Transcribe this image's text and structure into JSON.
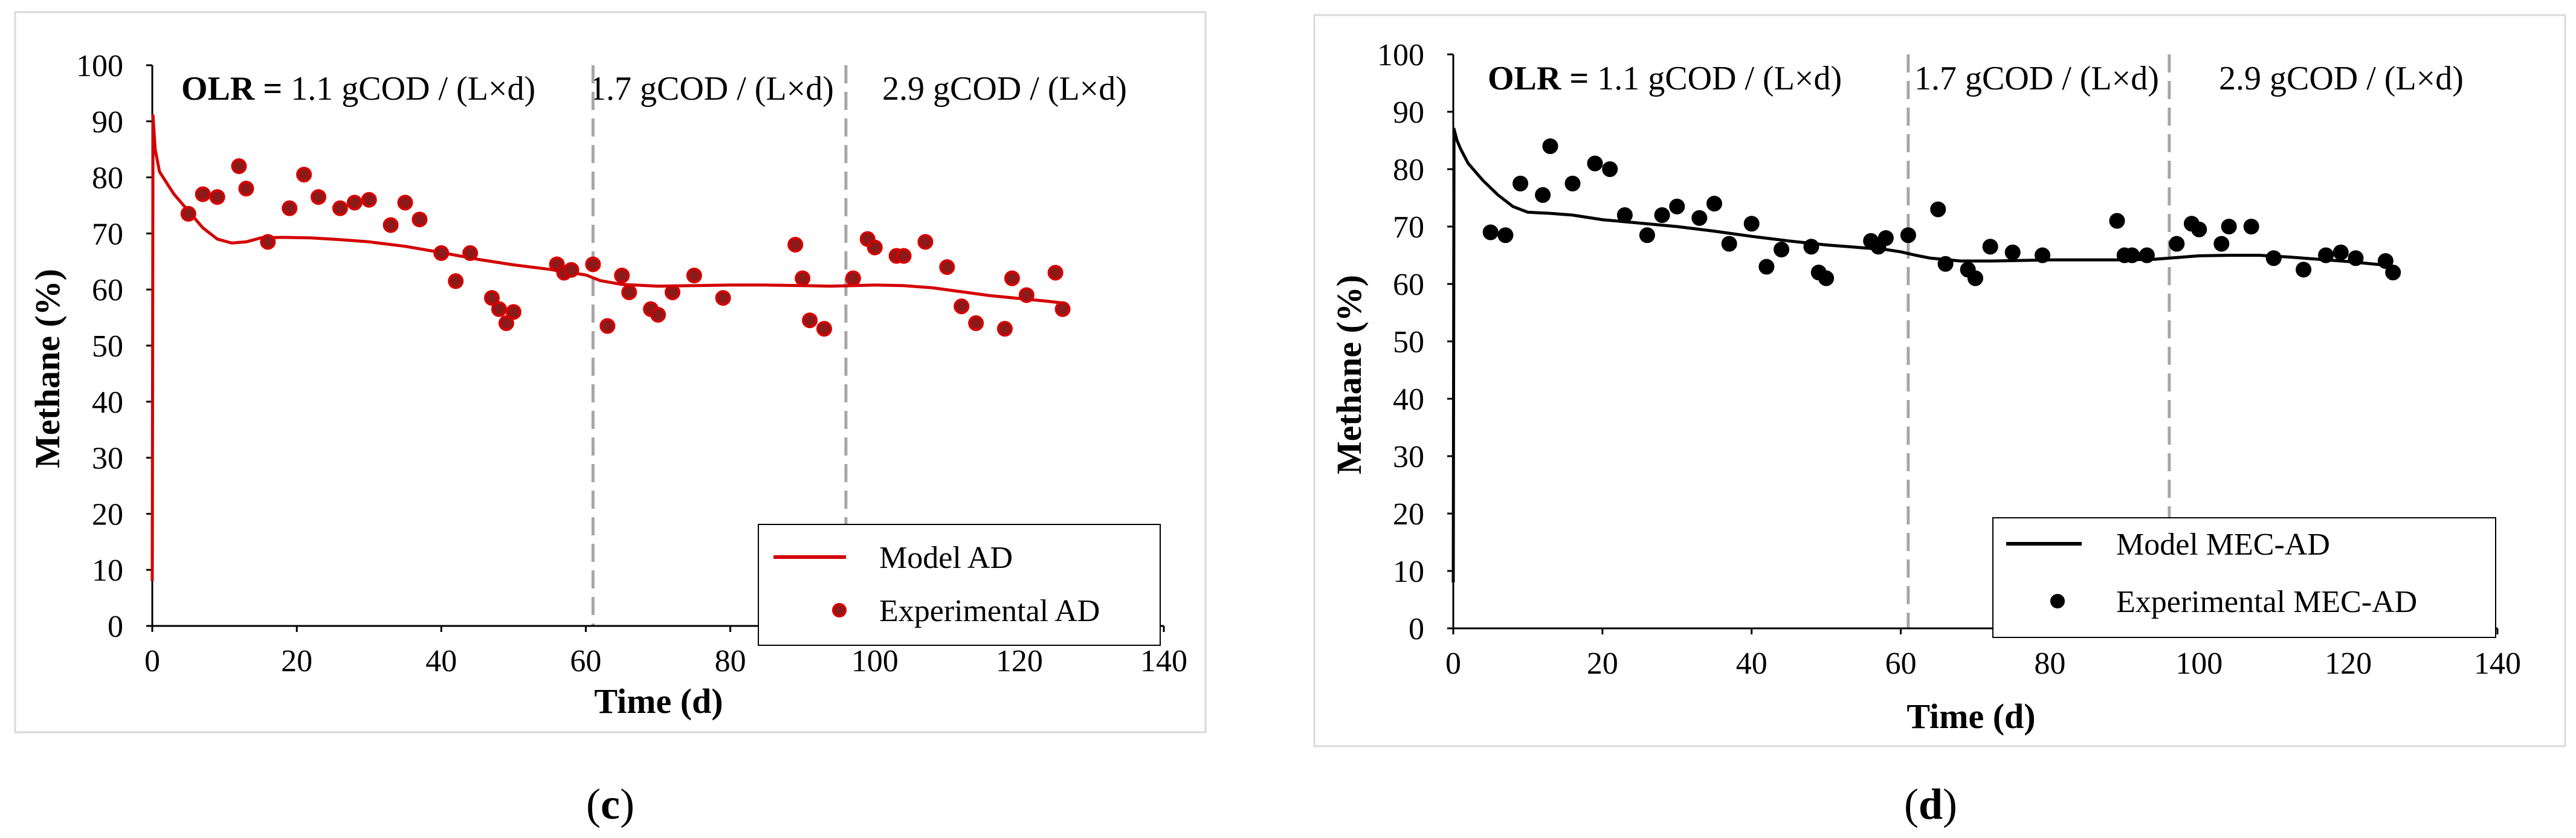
{
  "figure": {
    "panels": [
      "(c)",
      "(d)"
    ]
  },
  "chart_data": [
    {
      "type": "line+scatter",
      "panel_label": "c",
      "xlabel": "Time (d)",
      "ylabel": "Methane (%)",
      "xlim": [
        0,
        140
      ],
      "ylim": [
        0,
        100
      ],
      "xticks": [
        0,
        20,
        40,
        60,
        80,
        100,
        120,
        140
      ],
      "yticks": [
        0,
        10,
        20,
        30,
        40,
        50,
        60,
        70,
        80,
        90,
        100
      ],
      "grid": false,
      "legend_position": "bottom-right",
      "phase_dividers": [
        61,
        96
      ],
      "annotations": [
        {
          "bold": "OLR =",
          "text": " 1.1 gCOD / (L×d)"
        },
        {
          "bold": "",
          "text": "1.7 gCOD / (L×d)"
        },
        {
          "bold": "",
          "text": "2.9 gCOD / (L×d)"
        }
      ],
      "colors": {
        "model": "#d40000",
        "points": "#8b1a1a",
        "point_edge": "#d40000",
        "dividers": "#a6a6a6"
      },
      "series": [
        {
          "name": "Model AD",
          "kind": "line",
          "points": [
            [
              0,
              8
            ],
            [
              0.1,
              91
            ],
            [
              0.4,
              85
            ],
            [
              1,
              81
            ],
            [
              2,
              79
            ],
            [
              3,
              77
            ],
            [
              5,
              74
            ],
            [
              7,
              71
            ],
            [
              9,
              69
            ],
            [
              11,
              68.3
            ],
            [
              13,
              68.5
            ],
            [
              15,
              69.2
            ],
            [
              18,
              69.3
            ],
            [
              22,
              69.2
            ],
            [
              26,
              68.9
            ],
            [
              30,
              68.5
            ],
            [
              35,
              67.7
            ],
            [
              40,
              66.6
            ],
            [
              45,
              65.4
            ],
            [
              50,
              64.4
            ],
            [
              55,
              63.6
            ],
            [
              60,
              62.6
            ],
            [
              62,
              61.6
            ],
            [
              65,
              60.9
            ],
            [
              70,
              60.6
            ],
            [
              75,
              60.7
            ],
            [
              80,
              60.8
            ],
            [
              85,
              60.8
            ],
            [
              90,
              60.7
            ],
            [
              94,
              60.6
            ],
            [
              97,
              60.7
            ],
            [
              100,
              60.8
            ],
            [
              104,
              60.7
            ],
            [
              108,
              60.3
            ],
            [
              112,
              59.6
            ],
            [
              116,
              58.9
            ],
            [
              120,
              58.4
            ],
            [
              124,
              57.9
            ],
            [
              126,
              57.6
            ]
          ]
        },
        {
          "name": "Experimental AD",
          "kind": "scatter",
          "points": [
            [
              5,
              73.5
            ],
            [
              7,
              77
            ],
            [
              9,
              76.5
            ],
            [
              12,
              82
            ],
            [
              13,
              78
            ],
            [
              16,
              68.5
            ],
            [
              19,
              74.5
            ],
            [
              21,
              80.5
            ],
            [
              23,
              76.5
            ],
            [
              26,
              74.5
            ],
            [
              28,
              75.5
            ],
            [
              30,
              76
            ],
            [
              33,
              71.5
            ],
            [
              35,
              75.5
            ],
            [
              37,
              72.5
            ],
            [
              40,
              66.5
            ],
            [
              42,
              61.5
            ],
            [
              44,
              66.5
            ],
            [
              47,
              58.5
            ],
            [
              48,
              56.5
            ],
            [
              49,
              54
            ],
            [
              50,
              56
            ],
            [
              56,
              64.5
            ],
            [
              57,
              63
            ],
            [
              58,
              63.5
            ],
            [
              61,
              64.5
            ],
            [
              63,
              53.5
            ],
            [
              65,
              62.5
            ],
            [
              66,
              59.5
            ],
            [
              69,
              56.5
            ],
            [
              70,
              55.5
            ],
            [
              72,
              59.5
            ],
            [
              75,
              62.5
            ],
            [
              79,
              58.5
            ],
            [
              89,
              68
            ],
            [
              90,
              62
            ],
            [
              91,
              54.5
            ],
            [
              93,
              53
            ],
            [
              97,
              62
            ],
            [
              99,
              69
            ],
            [
              100,
              67.5
            ],
            [
              103,
              66
            ],
            [
              104,
              66
            ],
            [
              107,
              68.5
            ],
            [
              110,
              64
            ],
            [
              112,
              57
            ],
            [
              114,
              54
            ],
            [
              118,
              53
            ],
            [
              119,
              62
            ],
            [
              121,
              59
            ],
            [
              125,
              63
            ],
            [
              126,
              56.5
            ]
          ]
        }
      ]
    },
    {
      "type": "line+scatter",
      "panel_label": "d",
      "xlabel": "Time (d)",
      "ylabel": "Methane (%)",
      "xlim": [
        0,
        140
      ],
      "ylim": [
        0,
        100
      ],
      "xticks": [
        0,
        20,
        40,
        60,
        80,
        100,
        120,
        140
      ],
      "yticks": [
        0,
        10,
        20,
        30,
        40,
        50,
        60,
        70,
        80,
        90,
        100
      ],
      "grid": false,
      "legend_position": "bottom-right",
      "phase_dividers": [
        61,
        96
      ],
      "annotations": [
        {
          "bold": "OLR =",
          "text": " 1.1 gCOD / (L×d)"
        },
        {
          "bold": "",
          "text": "1.7 gCOD / (L×d)"
        },
        {
          "bold": "",
          "text": "2.9 gCOD / (L×d)"
        }
      ],
      "colors": {
        "model": "#000000",
        "points": "#000000",
        "point_edge": "#000000",
        "dividers": "#a6a6a6"
      },
      "series": [
        {
          "name": "Model MEC-AD",
          "kind": "line",
          "points": [
            [
              0,
              8
            ],
            [
              0.1,
              87
            ],
            [
              0.5,
              85
            ],
            [
              1,
              83.5
            ],
            [
              2,
              81
            ],
            [
              4,
              78
            ],
            [
              6,
              75.5
            ],
            [
              8,
              73.5
            ],
            [
              10,
              72.5
            ],
            [
              13,
              72.3
            ],
            [
              16,
              72
            ],
            [
              20,
              71.2
            ],
            [
              25,
              70.6
            ],
            [
              30,
              70
            ],
            [
              35,
              69.2
            ],
            [
              40,
              68.3
            ],
            [
              45,
              67.5
            ],
            [
              50,
              66.8
            ],
            [
              55,
              66.3
            ],
            [
              58,
              66
            ],
            [
              60,
              65.6
            ],
            [
              62,
              65
            ],
            [
              64,
              64.5
            ],
            [
              68,
              64
            ],
            [
              72,
              64
            ],
            [
              76,
              64.1
            ],
            [
              80,
              64.2
            ],
            [
              85,
              64.2
            ],
            [
              90,
              64.2
            ],
            [
              94,
              64.3
            ],
            [
              96,
              64.5
            ],
            [
              100,
              64.9
            ],
            [
              104,
              65
            ],
            [
              108,
              65
            ],
            [
              112,
              64.7
            ],
            [
              116,
              64.3
            ],
            [
              120,
              63.9
            ],
            [
              124,
              63.4
            ],
            [
              126,
              63
            ]
          ]
        },
        {
          "name": "Experimental MEC-AD",
          "kind": "scatter",
          "points": [
            [
              5,
              69
            ],
            [
              7,
              68.5
            ],
            [
              9,
              77.5
            ],
            [
              12,
              75.5
            ],
            [
              13,
              84
            ],
            [
              16,
              77.5
            ],
            [
              19,
              81
            ],
            [
              21,
              80
            ],
            [
              23,
              72
            ],
            [
              26,
              68.5
            ],
            [
              28,
              72
            ],
            [
              30,
              73.5
            ],
            [
              33,
              71.5
            ],
            [
              35,
              74
            ],
            [
              37,
              67
            ],
            [
              40,
              70.5
            ],
            [
              42,
              63
            ],
            [
              44,
              66
            ],
            [
              48,
              66.5
            ],
            [
              49,
              62
            ],
            [
              50,
              61
            ],
            [
              56,
              67.5
            ],
            [
              57,
              66.5
            ],
            [
              58,
              68
            ],
            [
              61,
              68.5
            ],
            [
              65,
              73
            ],
            [
              66,
              63.5
            ],
            [
              69,
              62.5
            ],
            [
              70,
              61
            ],
            [
              72,
              66.5
            ],
            [
              75,
              65.5
            ],
            [
              79,
              65
            ],
            [
              89,
              71
            ],
            [
              90,
              65
            ],
            [
              91,
              65
            ],
            [
              93,
              65
            ],
            [
              97,
              67
            ],
            [
              99,
              70.5
            ],
            [
              100,
              69.5
            ],
            [
              103,
              67
            ],
            [
              104,
              70
            ],
            [
              107,
              70
            ],
            [
              110,
              64.5
            ],
            [
              114,
              62.5
            ],
            [
              117,
              65
            ],
            [
              119,
              65.5
            ],
            [
              121,
              64.5
            ],
            [
              125,
              64
            ],
            [
              126,
              62
            ]
          ]
        }
      ]
    }
  ]
}
